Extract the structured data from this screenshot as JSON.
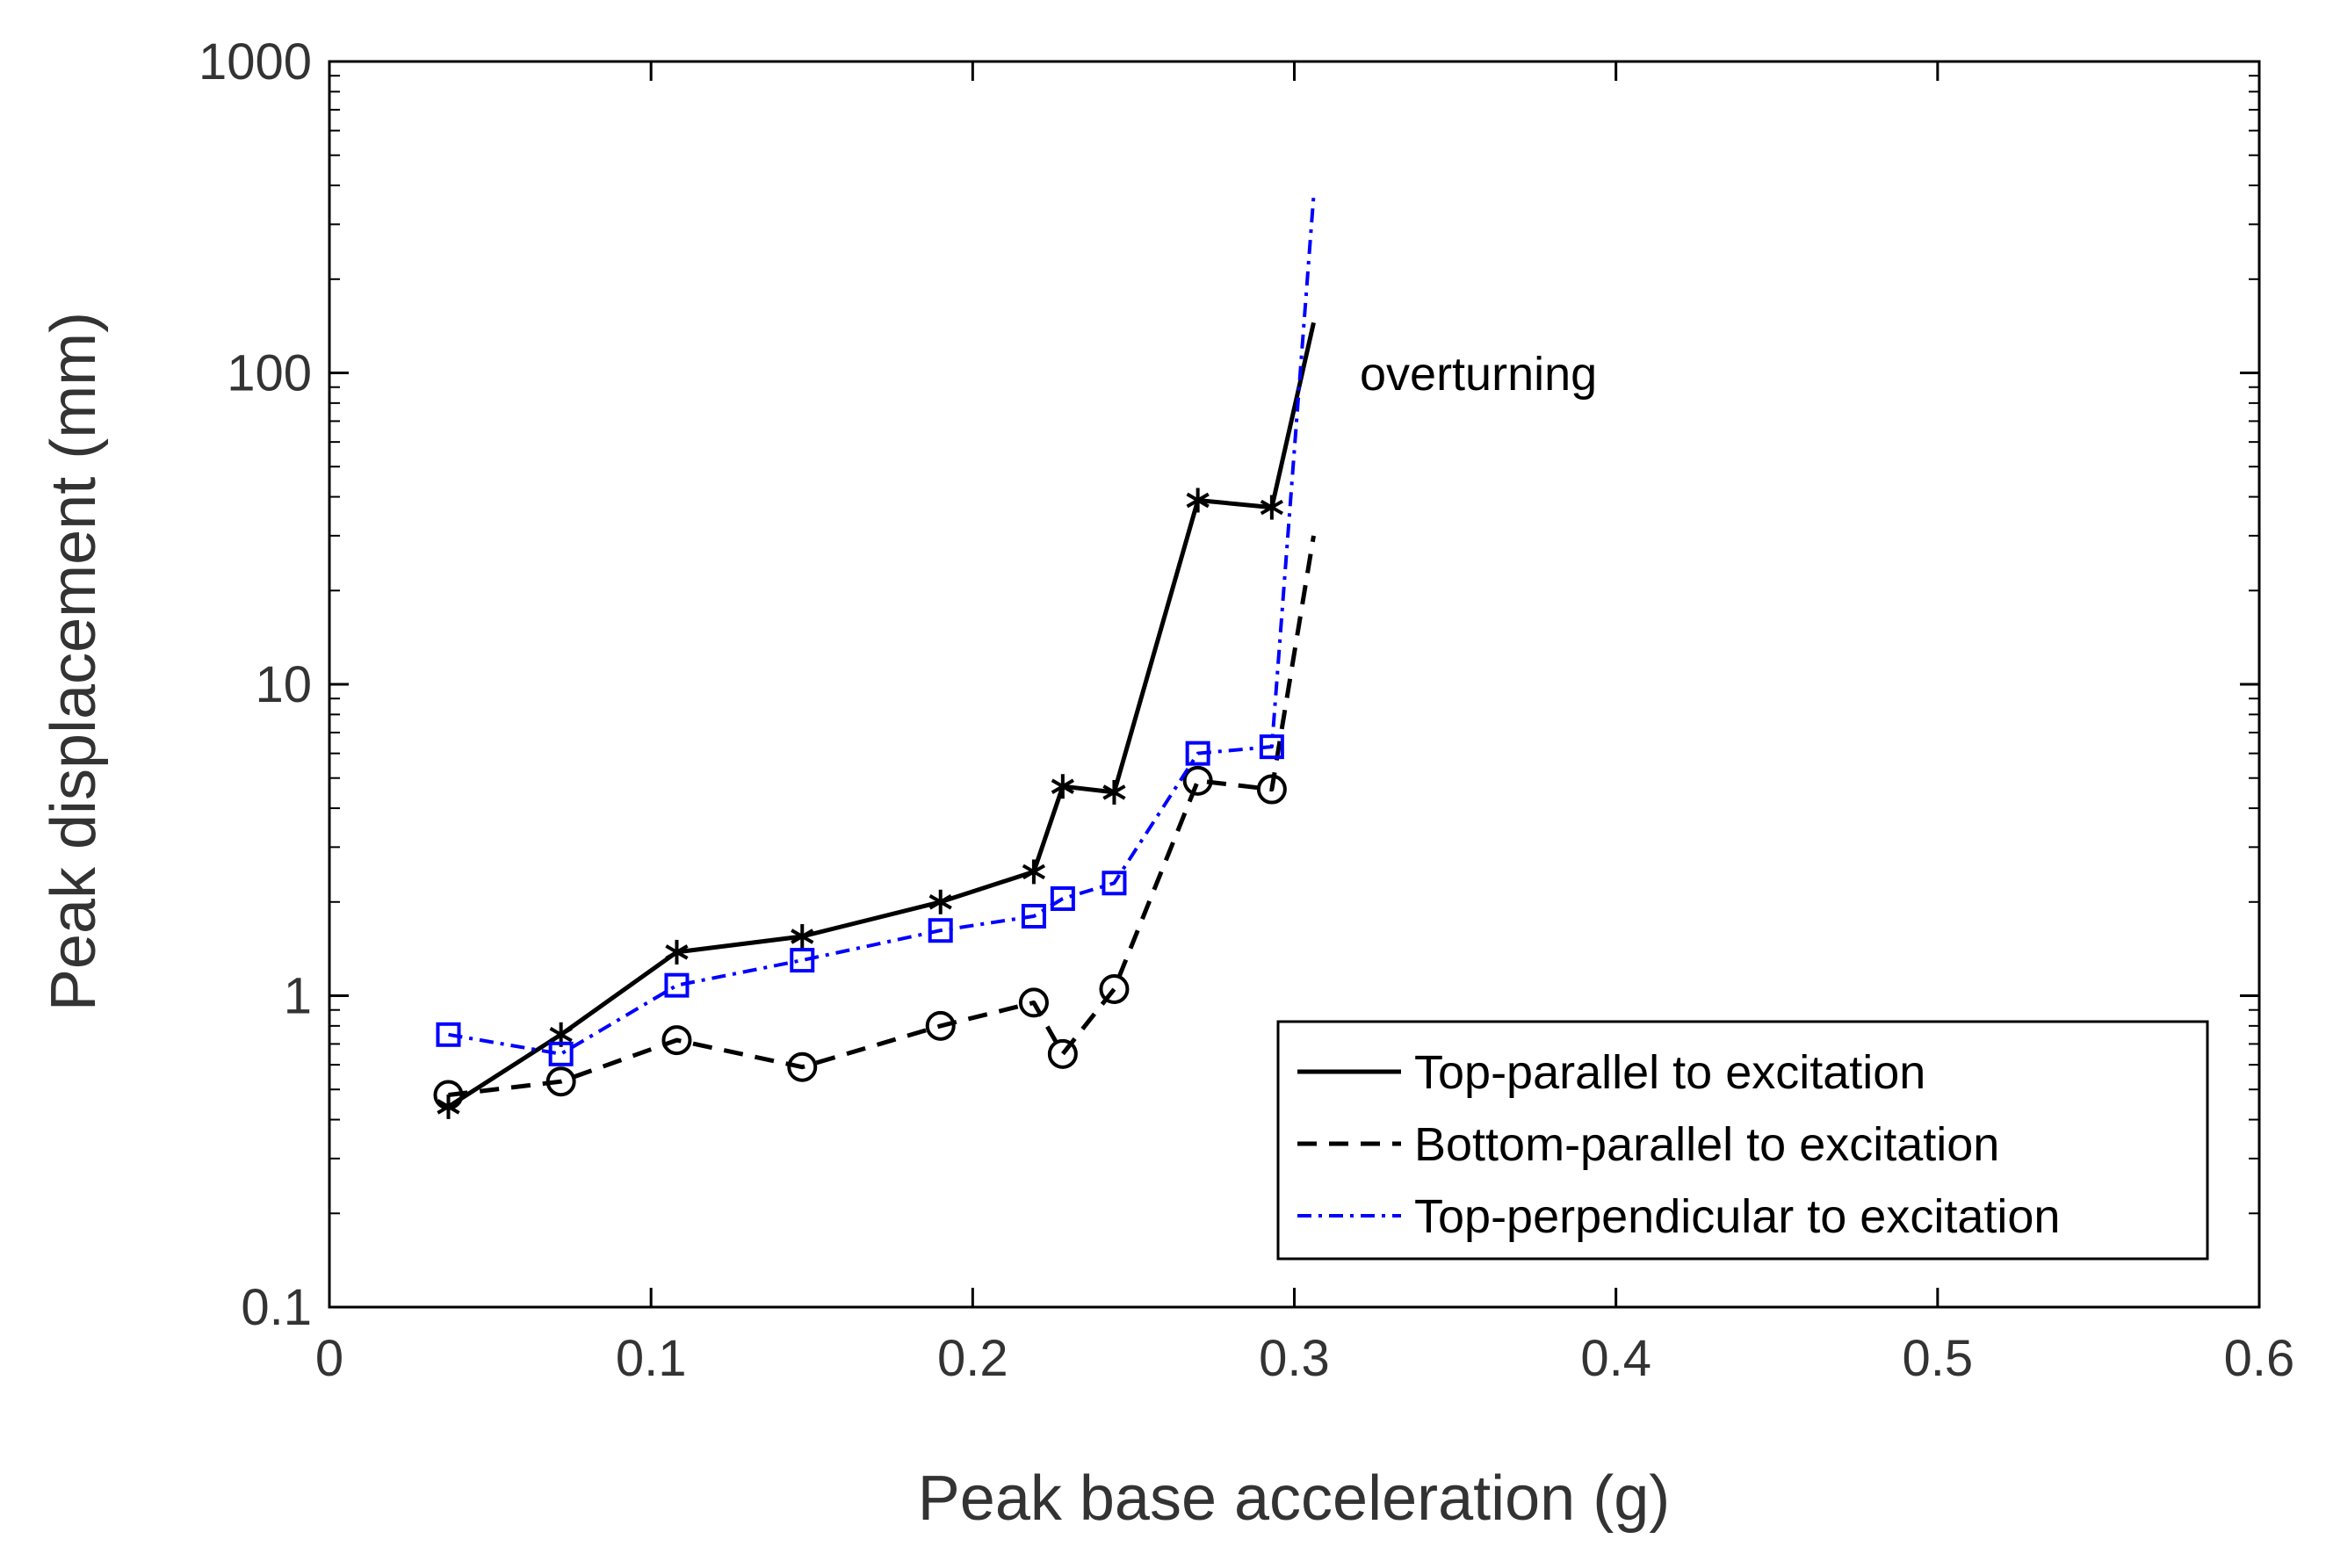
{
  "chart_data": {
    "type": "line",
    "xlabel": "Peak base acceleration (g)",
    "ylabel": "Peak displacement (mm)",
    "xlim": [
      0,
      0.6
    ],
    "ylim": [
      0.1,
      1000
    ],
    "yscale": "log",
    "grid": false,
    "legend_position": "bottom-right",
    "x_ticks": [
      0,
      0.1,
      0.2,
      0.3,
      0.4,
      0.5,
      0.6
    ],
    "x_tick_labels": [
      "0",
      "0.1",
      "0.2",
      "0.3",
      "0.4",
      "0.5",
      "0.6"
    ],
    "y_ticks": [
      0.1,
      1,
      10,
      100,
      1000
    ],
    "y_tick_labels": [
      "0.1",
      "1",
      "10",
      "100",
      "1000"
    ],
    "annotation": {
      "text": "overturning",
      "x": 0.32,
      "y": 100
    },
    "series": [
      {
        "name": "Top-parallel to excitation",
        "color": "#000000",
        "line_style": "solid",
        "marker": "asterisk",
        "points": [
          {
            "x": 0.037,
            "y": 0.44,
            "marker": true
          },
          {
            "x": 0.072,
            "y": 0.75,
            "marker": true
          },
          {
            "x": 0.108,
            "y": 1.38,
            "marker": true
          },
          {
            "x": 0.147,
            "y": 1.55,
            "marker": true
          },
          {
            "x": 0.19,
            "y": 2.0,
            "marker": true
          },
          {
            "x": 0.219,
            "y": 2.5,
            "marker": true
          },
          {
            "x": 0.228,
            "y": 4.7,
            "marker": true
          },
          {
            "x": 0.244,
            "y": 4.5,
            "marker": true
          },
          {
            "x": 0.27,
            "y": 39,
            "marker": true
          },
          {
            "x": 0.293,
            "y": 37,
            "marker": true
          },
          {
            "x": 0.306,
            "y": 145,
            "marker": false
          }
        ]
      },
      {
        "name": "Bottom-parallel to excitation",
        "color": "#000000",
        "line_style": "dashed",
        "marker": "circle",
        "points": [
          {
            "x": 0.037,
            "y": 0.48,
            "marker": true
          },
          {
            "x": 0.072,
            "y": 0.53,
            "marker": true
          },
          {
            "x": 0.108,
            "y": 0.72,
            "marker": true
          },
          {
            "x": 0.147,
            "y": 0.59,
            "marker": true
          },
          {
            "x": 0.19,
            "y": 0.8,
            "marker": true
          },
          {
            "x": 0.219,
            "y": 0.95,
            "marker": true
          },
          {
            "x": 0.228,
            "y": 0.65,
            "marker": true
          },
          {
            "x": 0.244,
            "y": 1.05,
            "marker": true
          },
          {
            "x": 0.27,
            "y": 4.9,
            "marker": true
          },
          {
            "x": 0.293,
            "y": 4.6,
            "marker": true
          },
          {
            "x": 0.306,
            "y": 30,
            "marker": false
          }
        ]
      },
      {
        "name": "Top-perpendicular to excitation",
        "color": "#0000ff",
        "line_style": "dashdot",
        "marker": "square",
        "points": [
          {
            "x": 0.037,
            "y": 0.75,
            "marker": true
          },
          {
            "x": 0.072,
            "y": 0.65,
            "marker": true
          },
          {
            "x": 0.108,
            "y": 1.08,
            "marker": true
          },
          {
            "x": 0.147,
            "y": 1.3,
            "marker": true
          },
          {
            "x": 0.19,
            "y": 1.62,
            "marker": true
          },
          {
            "x": 0.219,
            "y": 1.8,
            "marker": true
          },
          {
            "x": 0.228,
            "y": 2.05,
            "marker": true
          },
          {
            "x": 0.244,
            "y": 2.3,
            "marker": true
          },
          {
            "x": 0.27,
            "y": 6.0,
            "marker": true
          },
          {
            "x": 0.293,
            "y": 6.3,
            "marker": true
          },
          {
            "x": 0.306,
            "y": 370,
            "marker": false
          }
        ]
      }
    ]
  }
}
